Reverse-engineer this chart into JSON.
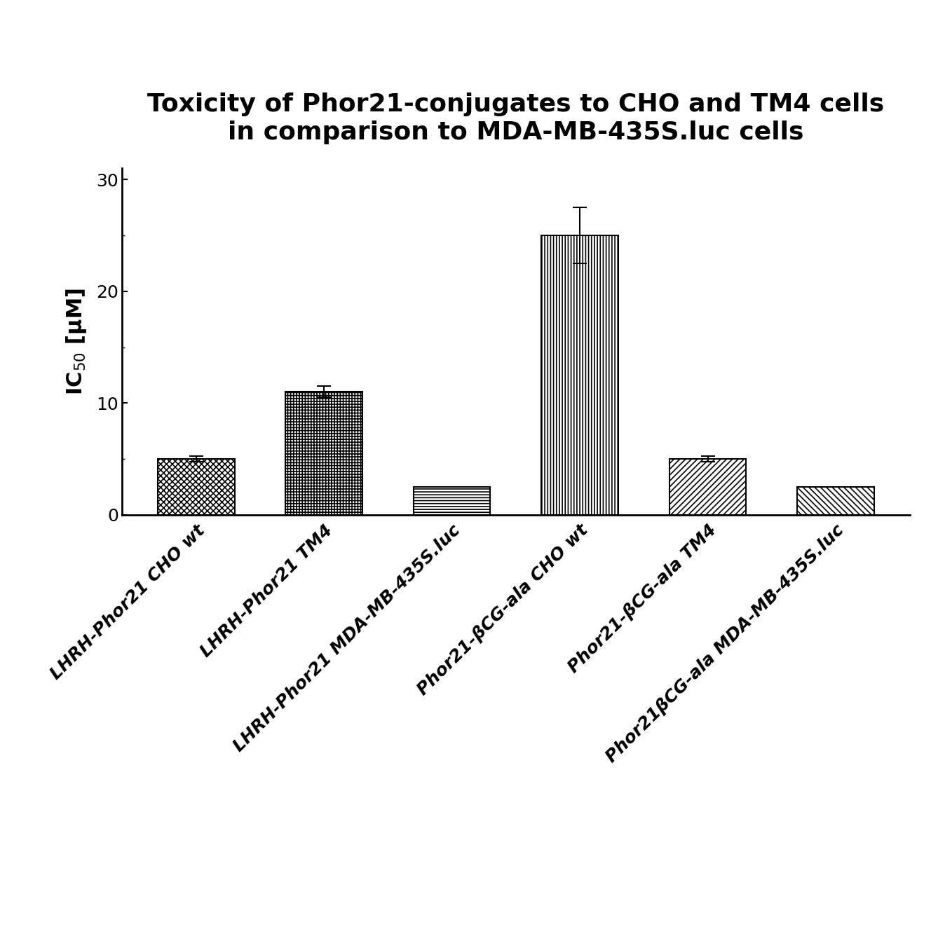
{
  "title_line1": "Toxicity of Phor21-conjugates to CHO and TM4 cells",
  "title_line2": "in comparison to MDA-MB-435S.luc cells",
  "categories": [
    "LHRH-Phor21 CHO wt",
    "LHRH-Phor21 TM4",
    "LHRH-Phor21 MDA-MB-435S.luc",
    "Phor21-βCG-ala CHO wt",
    "Phor21-βCG-ala TM4",
    "Phor21βCG-ala MDA-MB-435S.luc"
  ],
  "values": [
    5.0,
    11.0,
    2.5,
    25.0,
    5.0,
    2.5
  ],
  "errors": [
    0.25,
    0.5,
    0.0,
    2.5,
    0.25,
    0.0
  ],
  "bar_width": 0.6,
  "ylim": [
    0,
    31
  ],
  "yticks": [
    0,
    10,
    20,
    30
  ],
  "background_color": "#ffffff",
  "title_fontsize": 26,
  "axis_label_fontsize": 22,
  "tick_fontsize": 18,
  "xlabel_fontsize": 18
}
